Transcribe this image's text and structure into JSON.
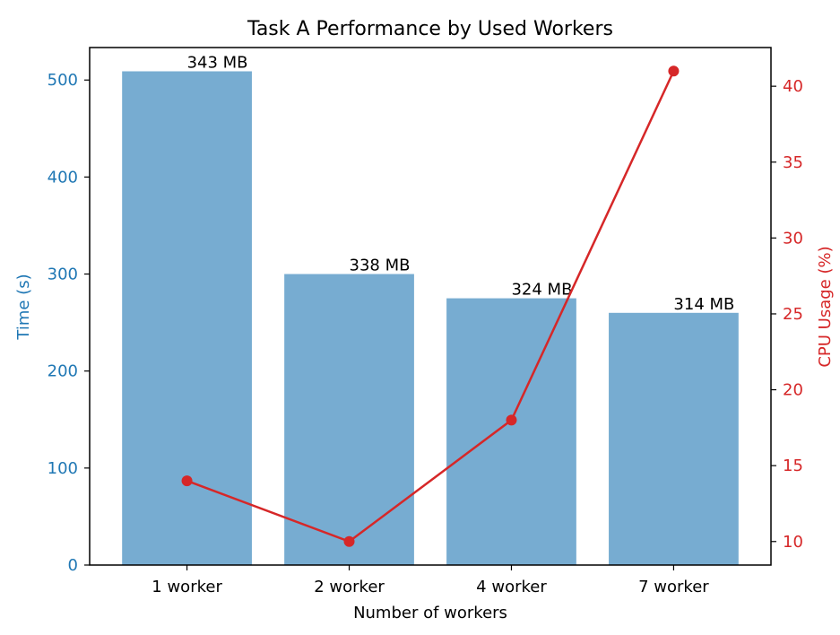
{
  "chart_data": {
    "type": "bar",
    "title": "Task A Performance by Used Workers",
    "xlabel": "Number of workers",
    "categories": [
      "1 worker",
      "2 worker",
      "4 worker",
      "7 worker"
    ],
    "grid": false,
    "legend": "none",
    "series": [
      {
        "name": "",
        "type": "bar",
        "axis": "left",
        "values": [
          509,
          300,
          275,
          260
        ],
        "labels": [
          "343 MB",
          "338 MB",
          "324 MB",
          "314 MB"
        ],
        "color": "#77acd1"
      },
      {
        "name": "",
        "type": "line",
        "axis": "right",
        "values": [
          14,
          10,
          18,
          41
        ],
        "color": "#d62728"
      }
    ],
    "y_left": {
      "label": "Time (s)",
      "range": [
        0,
        533.5
      ],
      "ticks": [
        0,
        100,
        200,
        300,
        400,
        500
      ],
      "color": "#1f77b4"
    },
    "y_right": {
      "label": "CPU Usage (%)",
      "range": [
        8.45,
        42.55
      ],
      "ticks": [
        10,
        15,
        20,
        25,
        30,
        35,
        40
      ],
      "color": "#d62728"
    }
  }
}
